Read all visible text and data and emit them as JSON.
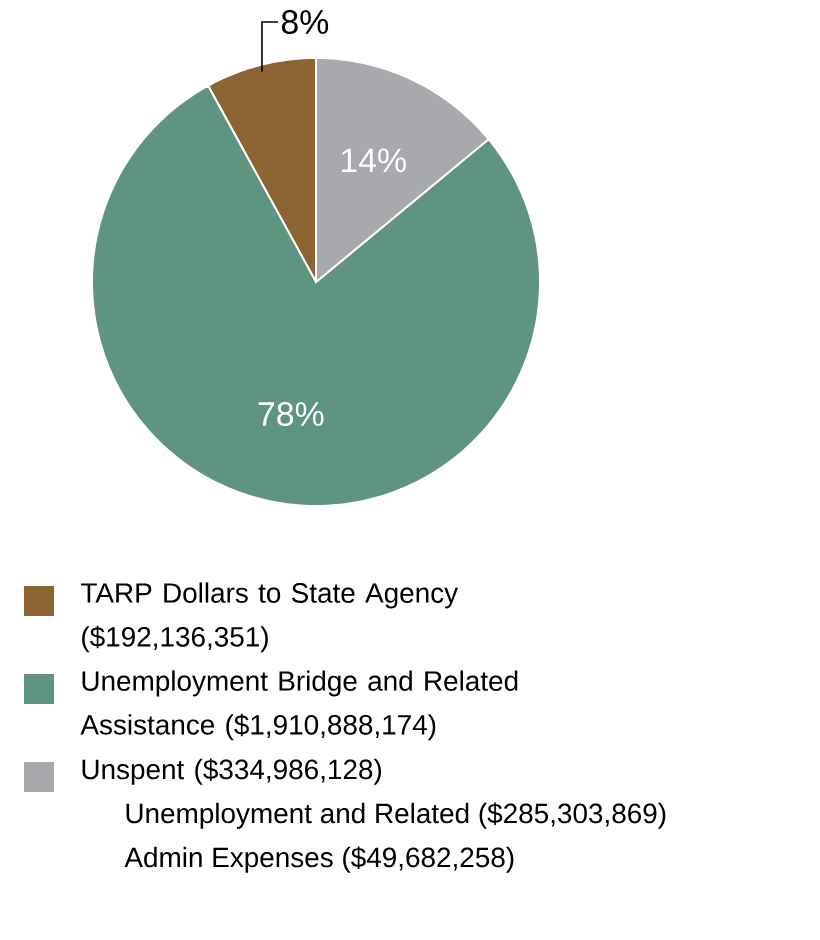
{
  "chart_data": {
    "type": "pie",
    "categories": [
      "TARP Dollars to State Agency ($192,136,351)",
      "Unemployment Bridge and Related Assistance ($1,910,888,174)",
      "Unspent ($334,986,128)"
    ],
    "values": [
      8,
      78,
      14
    ],
    "colors": [
      "#8c6431",
      "#5f9580",
      "#a7a9ac"
    ],
    "value_labels": [
      "8%",
      "78%",
      "14%"
    ],
    "legend": "bottom",
    "annotations": [
      "Unemployment and Related ($285,303,869)",
      "Admin Expenses ($49,682,258)"
    ]
  }
}
